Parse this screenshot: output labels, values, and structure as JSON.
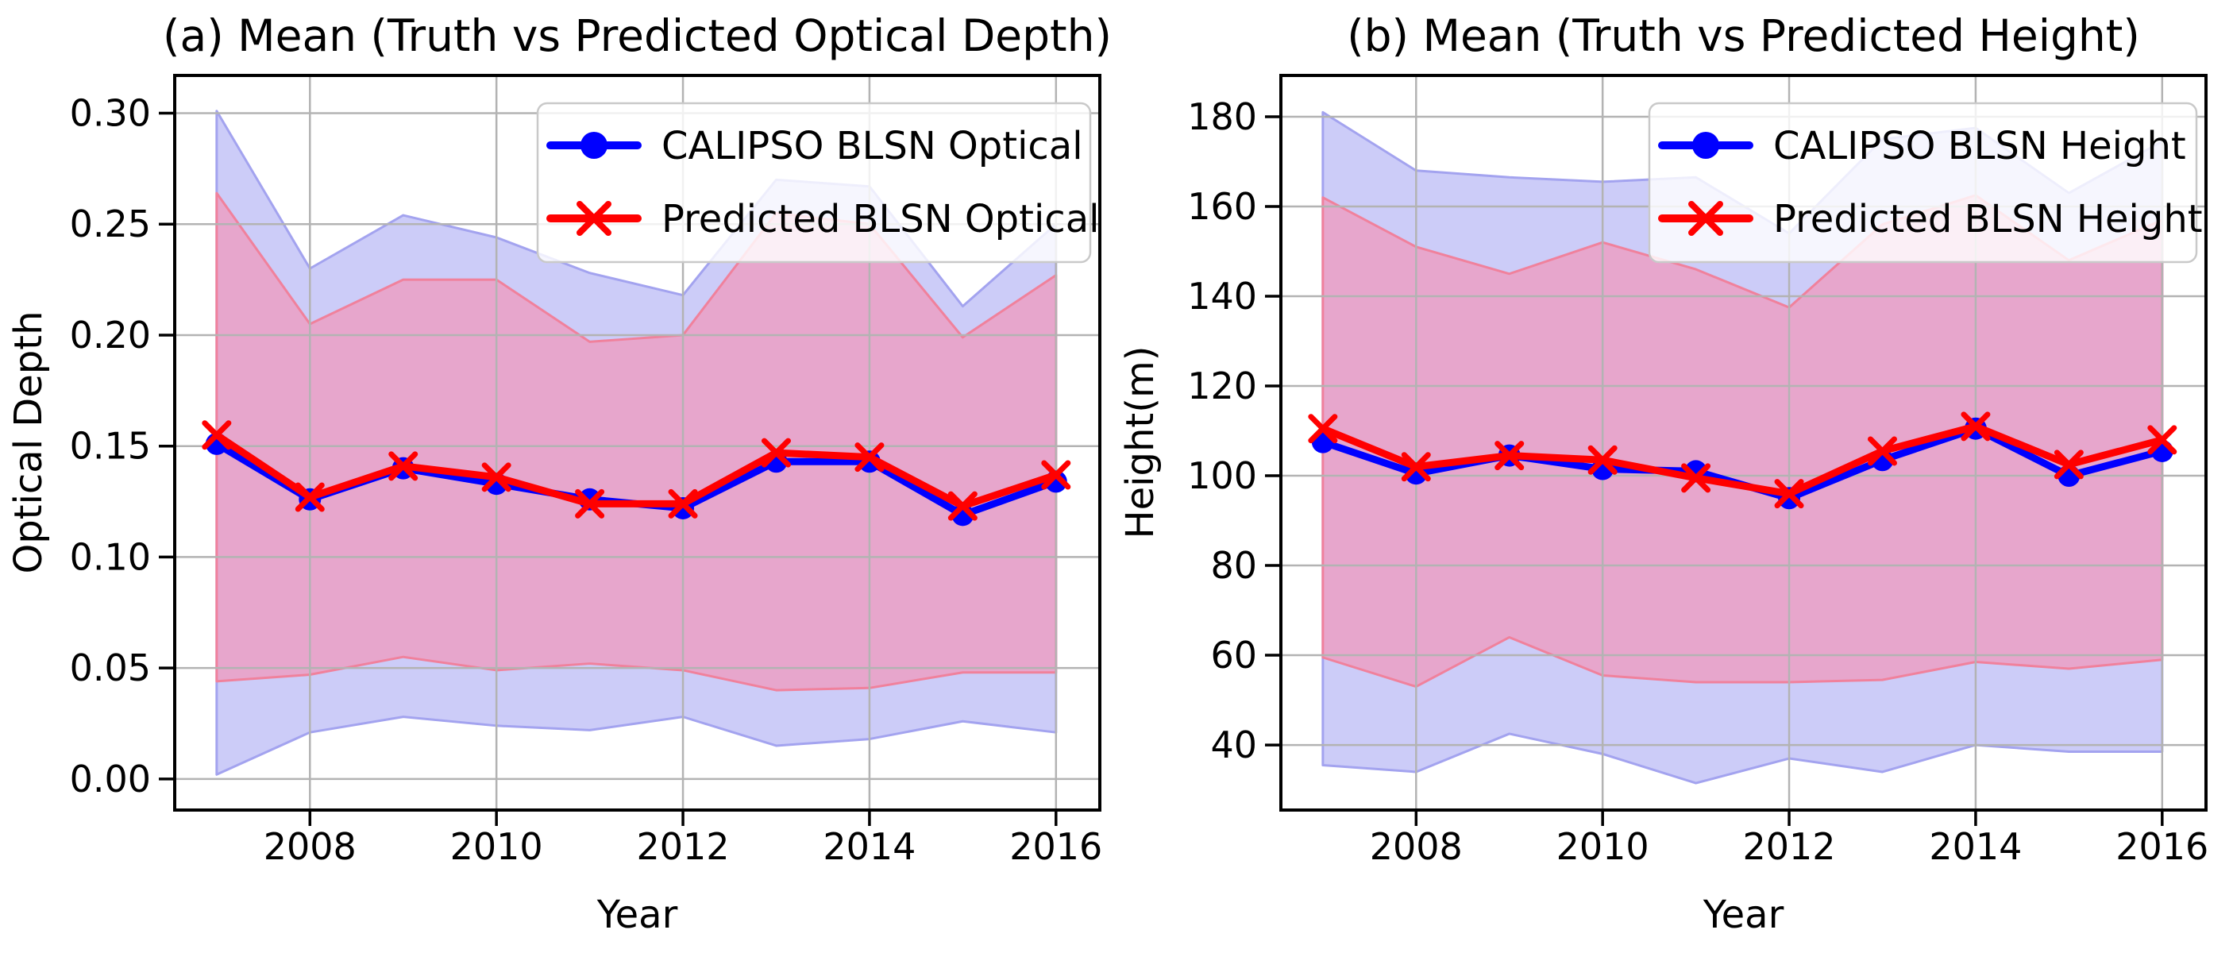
{
  "figure": {
    "background": "#ffffff",
    "panel_count": 2
  },
  "chart_data": [
    {
      "type": "line",
      "panel": "a",
      "title": "(a) Mean (Truth vs Predicted Optical Depth)",
      "xlabel": "Year",
      "ylabel": "Optical Depth",
      "x": [
        2007,
        2008,
        2009,
        2010,
        2011,
        2012,
        2013,
        2014,
        2015,
        2016
      ],
      "xticks": [
        2008,
        2010,
        2012,
        2014,
        2016
      ],
      "xtick_labels": [
        "2008",
        "2010",
        "2012",
        "2014",
        "2016"
      ],
      "yticks": [
        0.0,
        0.05,
        0.1,
        0.15,
        0.2,
        0.25,
        0.3
      ],
      "ytick_labels": [
        "0.00",
        "0.05",
        "0.10",
        "0.15",
        "0.20",
        "0.25",
        "0.30"
      ],
      "xlim": [
        2006.55,
        2016.47
      ],
      "ylim": [
        -0.014,
        0.317
      ],
      "grid": true,
      "grid_color": "#b3b3b3",
      "legend_position": "upper right",
      "series": [
        {
          "name": "CALIPSO BLSN Optical",
          "color": "#0000ff",
          "marker": "circle",
          "values": [
            0.151,
            0.126,
            0.14,
            0.133,
            0.126,
            0.122,
            0.143,
            0.143,
            0.119,
            0.134
          ],
          "band_upper": [
            0.301,
            0.23,
            0.254,
            0.244,
            0.228,
            0.218,
            0.27,
            0.267,
            0.213,
            0.25
          ],
          "band_lower": [
            0.002,
            0.021,
            0.028,
            0.024,
            0.022,
            0.028,
            0.015,
            0.018,
            0.026,
            0.021
          ],
          "band_fill": "#ccccf8",
          "band_edge": "#a3a3ef"
        },
        {
          "name": "Predicted BLSN Optical",
          "color": "#ff0000",
          "marker": "x",
          "values": [
            0.155,
            0.127,
            0.141,
            0.136,
            0.124,
            0.124,
            0.147,
            0.145,
            0.123,
            0.137
          ],
          "band_upper": [
            0.264,
            0.205,
            0.225,
            0.225,
            0.197,
            0.2,
            0.255,
            0.25,
            0.199,
            0.227
          ],
          "band_lower": [
            0.044,
            0.047,
            0.055,
            0.049,
            0.052,
            0.049,
            0.04,
            0.041,
            0.048,
            0.048
          ],
          "band_fill": "#e7a6cc",
          "band_edge": "#f0819c"
        }
      ]
    },
    {
      "type": "line",
      "panel": "b",
      "title": "(b) Mean (Truth vs Predicted Height)",
      "xlabel": "Year",
      "ylabel": "Height(m)",
      "x": [
        2007,
        2008,
        2009,
        2010,
        2011,
        2012,
        2013,
        2014,
        2015,
        2016
      ],
      "xticks": [
        2008,
        2010,
        2012,
        2014,
        2016
      ],
      "xtick_labels": [
        "2008",
        "2010",
        "2012",
        "2014",
        "2016"
      ],
      "yticks": [
        40,
        60,
        80,
        100,
        120,
        140,
        160,
        180
      ],
      "ytick_labels": [
        "40",
        "60",
        "80",
        "100",
        "120",
        "140",
        "160",
        "180"
      ],
      "xlim": [
        2006.55,
        2016.47
      ],
      "ylim": [
        25.5,
        189.2
      ],
      "grid": true,
      "grid_color": "#b3b3b3",
      "legend_position": "upper right",
      "series": [
        {
          "name": "CALIPSO BLSN Height",
          "color": "#0000ff",
          "marker": "circle",
          "values": [
            107.5,
            100.5,
            104.5,
            101.5,
            101.0,
            95.0,
            103.5,
            110.5,
            100.0,
            105.5
          ],
          "band_upper": [
            181.0,
            168.0,
            166.5,
            165.5,
            166.5,
            154.0,
            175.0,
            177.5,
            163.0,
            174.5
          ],
          "band_lower": [
            35.5,
            34.0,
            42.5,
            38.0,
            31.5,
            37.0,
            34.0,
            40.0,
            38.5,
            38.5
          ],
          "band_fill": "#ccccf8",
          "band_edge": "#a3a3ef"
        },
        {
          "name": "Predicted BLSN Height",
          "color": "#ff0000",
          "marker": "x",
          "values": [
            110.5,
            102.0,
            104.5,
            103.5,
            99.5,
            96.0,
            105.5,
            111.0,
            102.5,
            108.0
          ],
          "band_upper": [
            162.0,
            151.0,
            145.0,
            152.0,
            146.0,
            137.5,
            156.0,
            162.5,
            148.0,
            157.0
          ],
          "band_lower": [
            59.5,
            53.0,
            64.0,
            55.5,
            54.0,
            54.0,
            54.5,
            58.5,
            57.0,
            59.0
          ],
          "band_fill": "#e7a6cc",
          "band_edge": "#f0819c"
        }
      ]
    }
  ]
}
